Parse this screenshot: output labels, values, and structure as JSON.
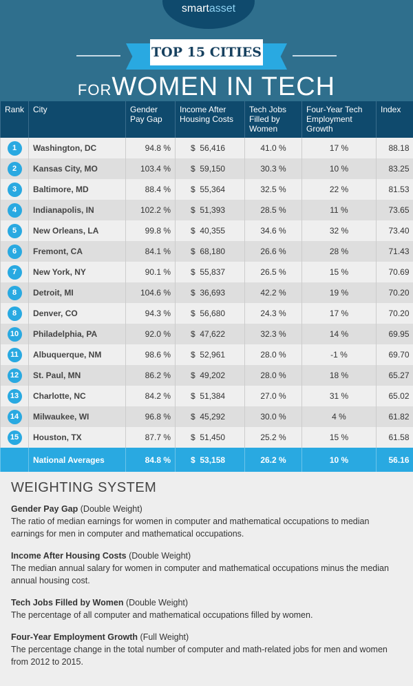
{
  "brand": {
    "left": "smart",
    "right": "asset"
  },
  "title": {
    "badge": "TOP 15 CITIES",
    "for": "FOR",
    "main": "WOMEN IN TECH"
  },
  "columns": [
    "Rank",
    "City",
    "Gender Pay Gap",
    "Income After Housing Costs",
    "Tech Jobs Filled by Women",
    "Four-Year Tech Employment Growth",
    "Index"
  ],
  "rows": [
    [
      "1",
      "Washington, DC",
      "94.8 %",
      "56,416",
      "41.0 %",
      "17 %",
      "88.18"
    ],
    [
      "2",
      "Kansas City, MO",
      "103.4 %",
      "59,150",
      "30.3 %",
      "10 %",
      "83.25"
    ],
    [
      "3",
      "Baltimore, MD",
      "88.4 %",
      "55,364",
      "32.5 %",
      "22 %",
      "81.53"
    ],
    [
      "4",
      "Indianapolis, IN",
      "102.2 %",
      "51,393",
      "28.5 %",
      "11 %",
      "73.65"
    ],
    [
      "5",
      "New Orleans, LA",
      "99.8 %",
      "40,355",
      "34.6 %",
      "32 %",
      "73.40"
    ],
    [
      "6",
      "Fremont, CA",
      "84.1 %",
      "68,180",
      "26.6 %",
      "28 %",
      "71.43"
    ],
    [
      "7",
      "New York, NY",
      "90.1 %",
      "55,837",
      "26.5 %",
      "15 %",
      "70.69"
    ],
    [
      "8",
      "Detroit, MI",
      "104.6 %",
      "36,693",
      "42.2 %",
      "19 %",
      "70.20"
    ],
    [
      "8",
      "Denver, CO",
      "94.3 %",
      "56,680",
      "24.3 %",
      "17 %",
      "70.20"
    ],
    [
      "10",
      "Philadelphia, PA",
      "92.0 %",
      "47,622",
      "32.3 %",
      "14 %",
      "69.95"
    ],
    [
      "11",
      "Albuquerque, NM",
      "98.6 %",
      "52,961",
      "28.0 %",
      "-1 %",
      "69.70"
    ],
    [
      "12",
      "St. Paul, MN",
      "86.2 %",
      "49,202",
      "28.0 %",
      "18 %",
      "65.27"
    ],
    [
      "13",
      "Charlotte, NC",
      "84.2 %",
      "51,384",
      "27.0 %",
      "31 %",
      "65.02"
    ],
    [
      "14",
      "Milwaukee, WI",
      "96.8 %",
      "45,292",
      "30.0 %",
      "4 %",
      "61.82"
    ],
    [
      "15",
      "Houston, TX",
      "87.7 %",
      "51,450",
      "25.2 %",
      "15 %",
      "61.58"
    ]
  ],
  "currency": "$",
  "averages": [
    "National Averages",
    "84.8 %",
    "53,158",
    "26.2 %",
    "10 %",
    "56.16"
  ],
  "weighting": {
    "heading": "WEIGHTING SYSTEM",
    "items": [
      {
        "name": "Gender Pay Gap",
        "weight": "(Double Weight)",
        "desc": "The ratio of median earnings for women in computer and mathematical occupations to median earnings for men in computer and mathematical occupations."
      },
      {
        "name": "Income After Housing Costs",
        "weight": "(Double Weight)",
        "desc": "The median annual salary for women in computer and mathematical occupations minus the median annual housing cost."
      },
      {
        "name": "Tech Jobs Filled by Women",
        "weight": "(Double Weight)",
        "desc": "The percentage of all computer and mathematical occupations filled by women."
      },
      {
        "name": "Four-Year Employment Growth",
        "weight": "(Full Weight)",
        "desc": "The percentage change in the total number of computer and math-related jobs for men and women from 2012 to 2015."
      }
    ]
  }
}
